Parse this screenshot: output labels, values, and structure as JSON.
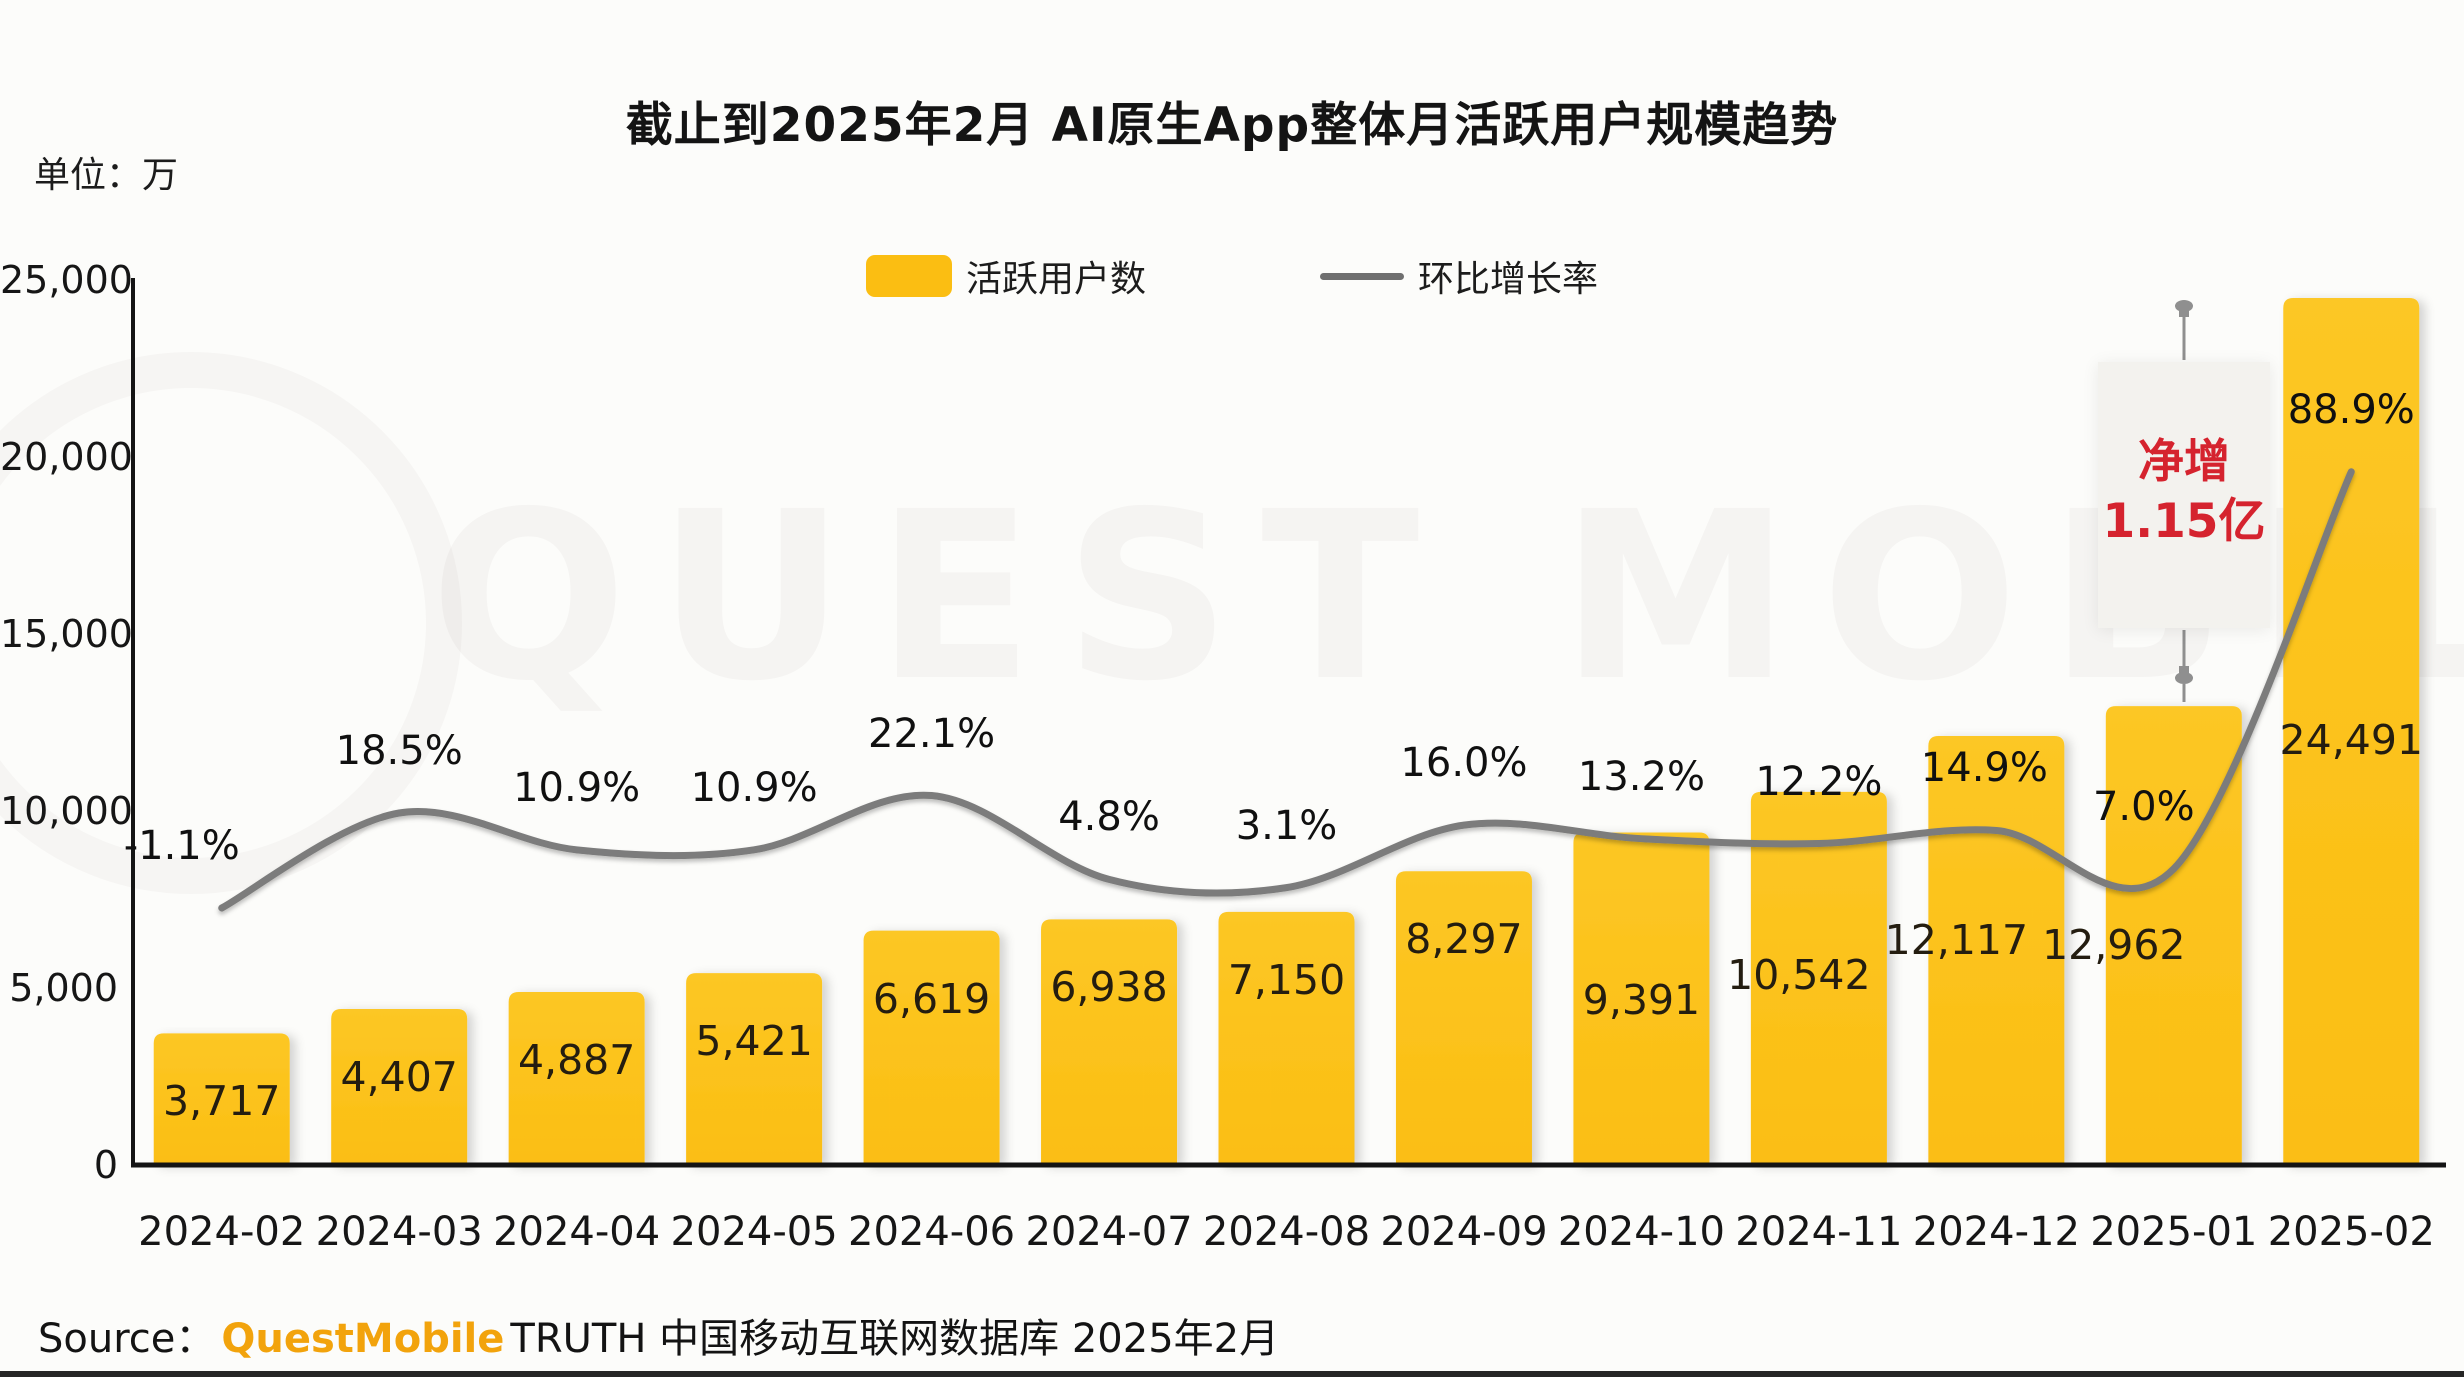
{
  "unit_label": "单位：万",
  "chart_data": {
    "type": "bar+line",
    "title": "截止到2025年2月 AI原生App整体月活跃用户规模趋势",
    "categories": [
      "2024-02",
      "2024-03",
      "2024-04",
      "2024-05",
      "2024-06",
      "2024-07",
      "2024-08",
      "2024-09",
      "2024-10",
      "2024-11",
      "2024-12",
      "2025-01",
      "2025-02"
    ],
    "series": [
      {
        "name": "活跃用户数",
        "type": "bar",
        "unit": "万",
        "values": [
          3717,
          4407,
          4887,
          5421,
          6619,
          6938,
          7150,
          8297,
          9391,
          10542,
          12117,
          12962,
          24491
        ],
        "labels": [
          "3,717",
          "4,407",
          "4,887",
          "5,421",
          "6,619",
          "6,938",
          "7,150",
          "8,297",
          "9,391",
          "10,542",
          "12,117",
          "12,962",
          "24,491"
        ]
      },
      {
        "name": "环比增长率",
        "type": "line",
        "unit": "%",
        "values": [
          -1.1,
          18.5,
          10.9,
          10.9,
          22.1,
          4.8,
          3.1,
          16.0,
          13.2,
          12.2,
          14.9,
          7.0,
          88.9
        ],
        "labels": [
          "-1.1%",
          "18.5%",
          "10.9%",
          "10.9%",
          "22.1%",
          "4.8%",
          "3.1%",
          "16.0%",
          "13.2%",
          "12.2%",
          "14.9%",
          "7.0%",
          "88.9%"
        ]
      }
    ],
    "yaxis": {
      "ticks": [
        "25,000",
        "20,000",
        "15,000",
        "10,000",
        "5,000",
        "0"
      ],
      "min": 0,
      "max": 25000,
      "unit": "万"
    },
    "grid": false,
    "legend_position": "top"
  },
  "annotation": {
    "line1": "净增",
    "line2": "1.15亿"
  },
  "watermark": "QUEST MOBILE",
  "source": {
    "prefix": "Source：",
    "brand": "QuestMobile",
    "suffix": "TRUTH 中国移动互联网数据库 2025年2月"
  },
  "colors": {
    "bar": "#FBBE12",
    "bar_light": "#FCC725",
    "line": "#7b7b7b",
    "axis": "#141414",
    "annotation_text": "#D5232E",
    "brand_orange": "#F2A30C",
    "pin": "#8f8f8f"
  }
}
